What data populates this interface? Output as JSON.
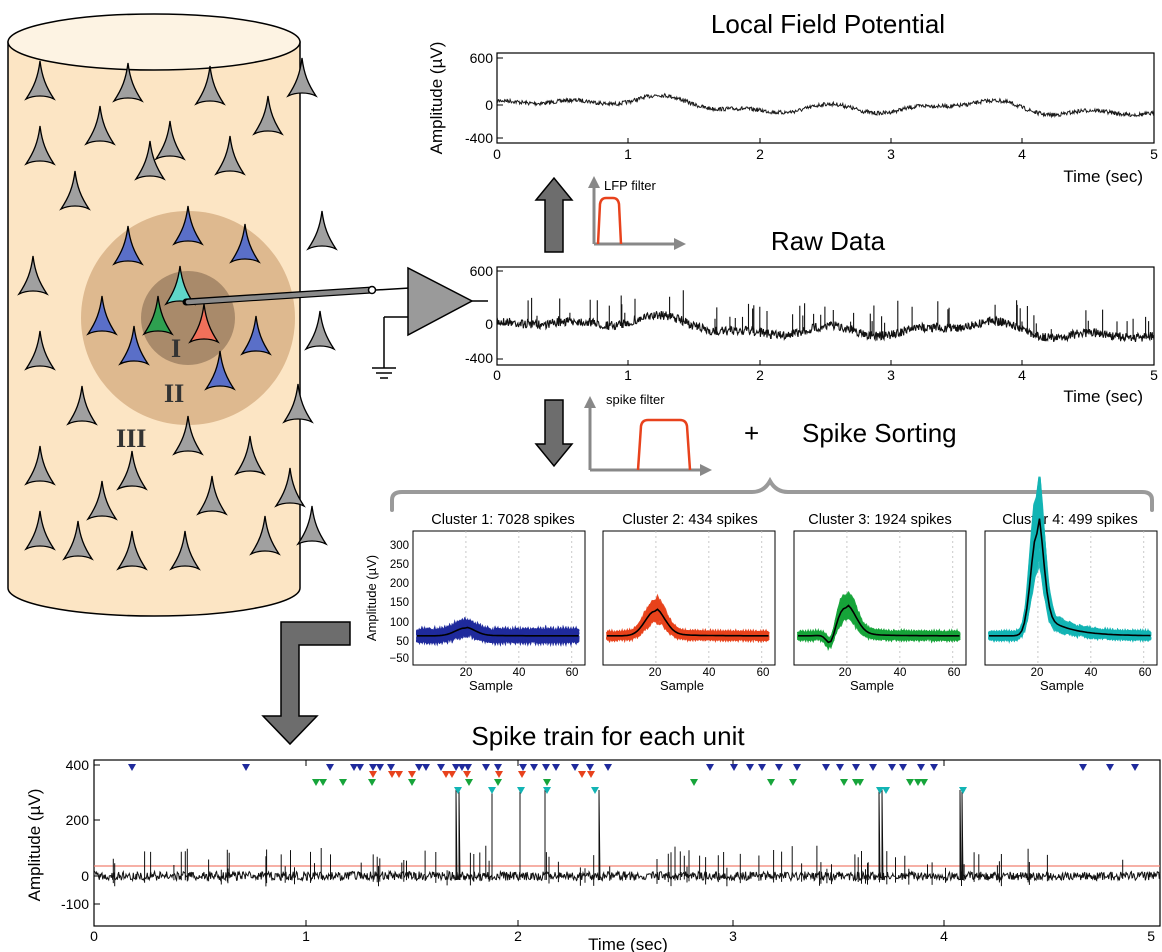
{
  "lfp_panel": {
    "title": "Local Field Potential",
    "ylabel": "Amplitude (µV)",
    "xlabel": "Time (sec)",
    "yticks": [
      "600",
      "0",
      "-400"
    ],
    "xticks": [
      "0",
      "1",
      "2",
      "3",
      "4",
      "5"
    ]
  },
  "lfp_filter_label": "LFP filter",
  "raw_panel": {
    "title": "Raw Data",
    "xlabel": "Time (sec)",
    "yticks": [
      "600",
      "0",
      "-400"
    ],
    "xticks": [
      "0",
      "1",
      "2",
      "3",
      "4",
      "5"
    ]
  },
  "spike_filter_label": "spike filter",
  "plus_sign": "+",
  "spike_sorting_label": "Spike Sorting",
  "clusters": [
    {
      "title": "Cluster 1: 7028 spikes",
      "color": "#1f2a9c"
    },
    {
      "title": "Cluster 2: 434 spikes",
      "color": "#e8421c"
    },
    {
      "title": "Cluster 3: 1924 spikes",
      "color": "#16a43a"
    },
    {
      "title": "Cluster 4: 499 spikes",
      "color": "#12b4b4"
    }
  ],
  "cluster_axes": {
    "ylabel": "Amplitude (µV)",
    "xlabel": "Sample",
    "yticks": [
      "300",
      "250",
      "200",
      "150",
      "100",
      "50",
      "0",
      "−50"
    ],
    "xticks": [
      "20",
      "40",
      "60"
    ]
  },
  "cylinder_regions": [
    "I",
    "II",
    "III"
  ],
  "spike_train_panel": {
    "title": "Spike train for each unit",
    "ylabel": "Amplitude (µV)",
    "xlabel": "Time (sec)",
    "yticks": [
      "400",
      "200",
      "0",
      "-100"
    ],
    "xticks": [
      "0",
      "1",
      "2",
      "3",
      "4",
      "5"
    ]
  },
  "colors": {
    "cylinder": "#fce5c4",
    "neuron": "#a0a0a0",
    "zone_outer": "#deb98f",
    "zone_inner": "#a98a6a",
    "arrow": "#6d6d6d",
    "threshold": "#f08070"
  }
}
